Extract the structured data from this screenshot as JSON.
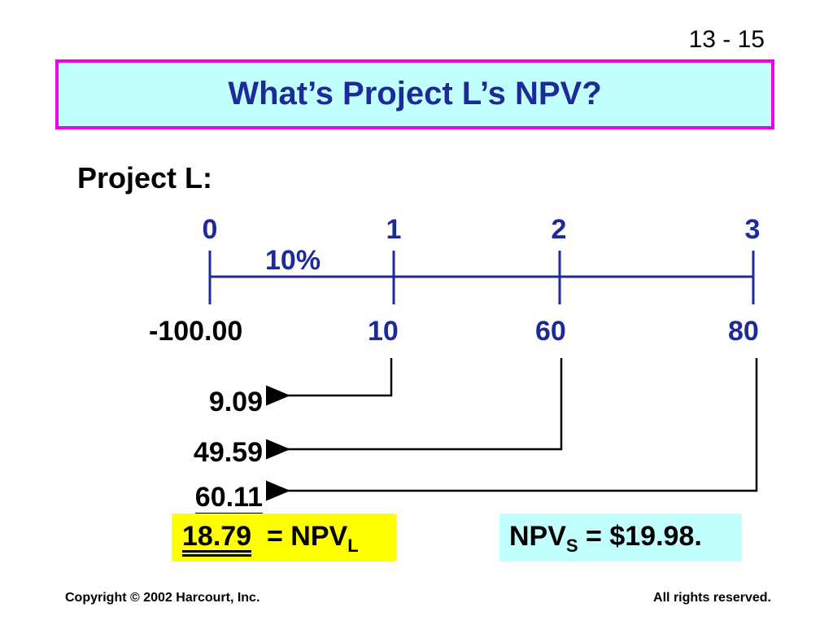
{
  "slide_number": "13 - 15",
  "title": "What’s Project L’s NPV?",
  "project_label": "Project L:",
  "timeline": {
    "periods": [
      "0",
      "1",
      "2",
      "3"
    ],
    "rate": "10%"
  },
  "cash_flows": [
    "-100.00",
    "10",
    "60",
    "80"
  ],
  "present_values": [
    "9.09",
    "49.59",
    "60.11"
  ],
  "npv_l": {
    "value": "18.79",
    "equals": "= NPV",
    "subscript": "L"
  },
  "npv_s": {
    "prefix": "NPV",
    "subscript": "S",
    "value": " = $19.98."
  },
  "footer": {
    "copyright": "Copyright © 2002 Harcourt, Inc.",
    "rights": "All rights reserved."
  },
  "colors": {
    "title_text": "#1d2a9a",
    "title_bg": "#c2ffff",
    "title_border": "#ee00ee",
    "timeline": "#1d2a9a",
    "highlight_yellow": "#ffff00",
    "highlight_cyan": "#c2ffff"
  }
}
